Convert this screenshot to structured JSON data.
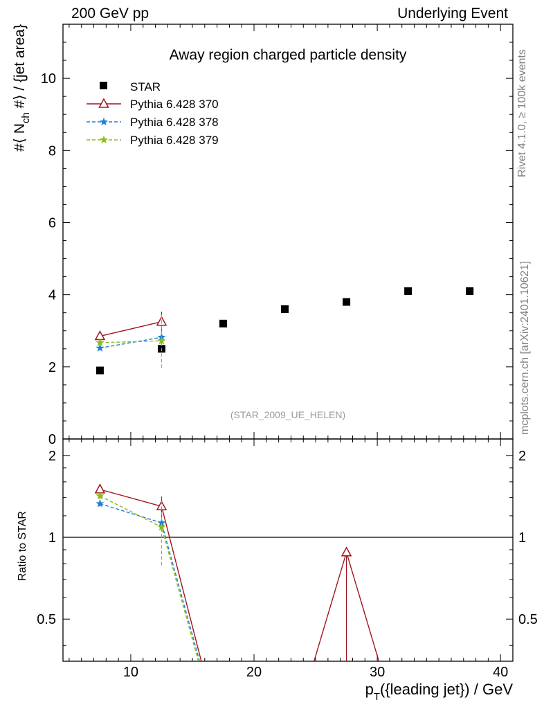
{
  "header": {
    "left_title": "200 GeV pp",
    "right_title": "Underlying Event"
  },
  "side_notes": {
    "rivet": "Rivet 4.1.0, ≥ 100k events",
    "mcplots": "mcplots.cern.ch [arXiv:2401.10621]"
  },
  "chart_data": {
    "type": "scatter",
    "title": "Away region charged particle density",
    "analysis_tag": "(STAR_2009_UE_HELEN)",
    "xlabel": "p_T({leading jet}) / GeV",
    "ylabel": "#⟨ N_ch #⟩ / {jet area}",
    "ratio_ylabel": "Ratio to STAR",
    "xlim": [
      4.5,
      41
    ],
    "ylim": [
      0,
      11.5
    ],
    "ratio_ylim": [
      0.35,
      2.3
    ],
    "x_ticks": [
      10,
      20,
      30,
      40
    ],
    "y_ticks": [
      0,
      2,
      4,
      6,
      8,
      10
    ],
    "ratio_ticks": [
      0.5,
      1,
      2
    ],
    "ratio_tick_labels": [
      "0.5",
      "1",
      "2"
    ],
    "legend_position": "top-left",
    "colors": {
      "star": "#000000",
      "p370": "#a0141e",
      "p378": "#1f7fd6",
      "p379": "#8dbb1a"
    },
    "data": {
      "name": "STAR",
      "x": [
        7.5,
        12.5,
        17.5,
        22.5,
        27.5,
        32.5,
        37.5
      ],
      "y": [
        1.9,
        2.5,
        3.2,
        3.6,
        3.8,
        4.1,
        4.1
      ]
    },
    "series": [
      {
        "name": "Pythia 6.428 370",
        "x": [
          7.5,
          12.5
        ],
        "y": [
          2.85,
          3.25
        ],
        "yerr": [
          0.1,
          0.28
        ],
        "ratio_x": [
          7.5,
          12.5,
          16.3,
          24.2,
          27.5,
          30.8
        ],
        "ratio_y": [
          1.5,
          1.3,
          0.0,
          0.0,
          0.88,
          0.0
        ]
      },
      {
        "name": "Pythia 6.428 378",
        "x": [
          7.5,
          12.5
        ],
        "y": [
          2.52,
          2.82
        ],
        "yerr": [
          0.06,
          0.2
        ],
        "ratio_x": [
          7.5,
          12.5,
          16.2
        ],
        "ratio_y": [
          1.33,
          1.13,
          0.0
        ]
      },
      {
        "name": "Pythia 6.428 379",
        "x": [
          7.5,
          12.5
        ],
        "y": [
          2.67,
          2.72
        ],
        "yerr": [
          0.08,
          0.75
        ],
        "ratio_x": [
          7.5,
          12.5,
          16.1
        ],
        "ratio_y": [
          1.42,
          1.09,
          0.0
        ]
      }
    ]
  }
}
